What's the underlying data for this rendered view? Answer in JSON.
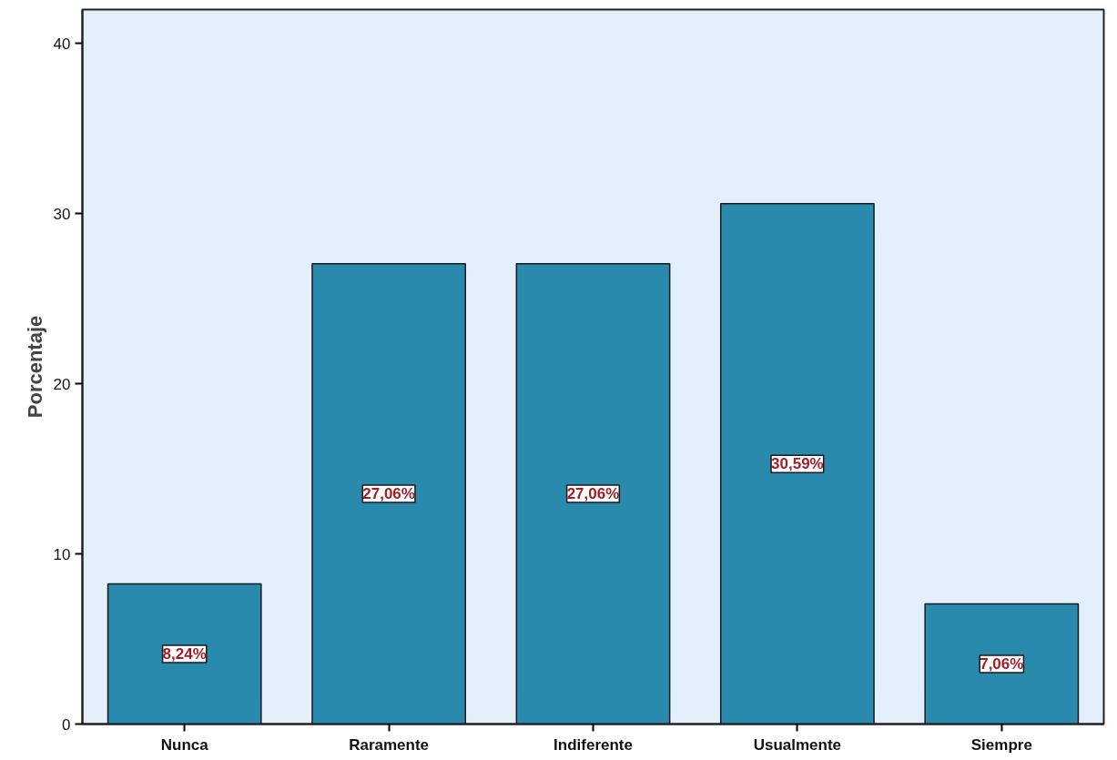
{
  "chart_data": {
    "type": "bar",
    "ylabel": "Porcentaje",
    "categories": [
      "Nunca",
      "Raramente",
      "Indiferente",
      "Usualmente",
      "Siempre"
    ],
    "values": [
      8.24,
      27.06,
      27.06,
      30.59,
      7.06
    ],
    "value_labels": [
      "8,24%",
      "27,06%",
      "27,06%",
      "30,59%",
      "7,06%"
    ],
    "color": "#2a8aae",
    "ylim": [
      0,
      42
    ],
    "yticks": [
      0,
      10,
      20,
      30,
      40
    ],
    "grid": false
  }
}
